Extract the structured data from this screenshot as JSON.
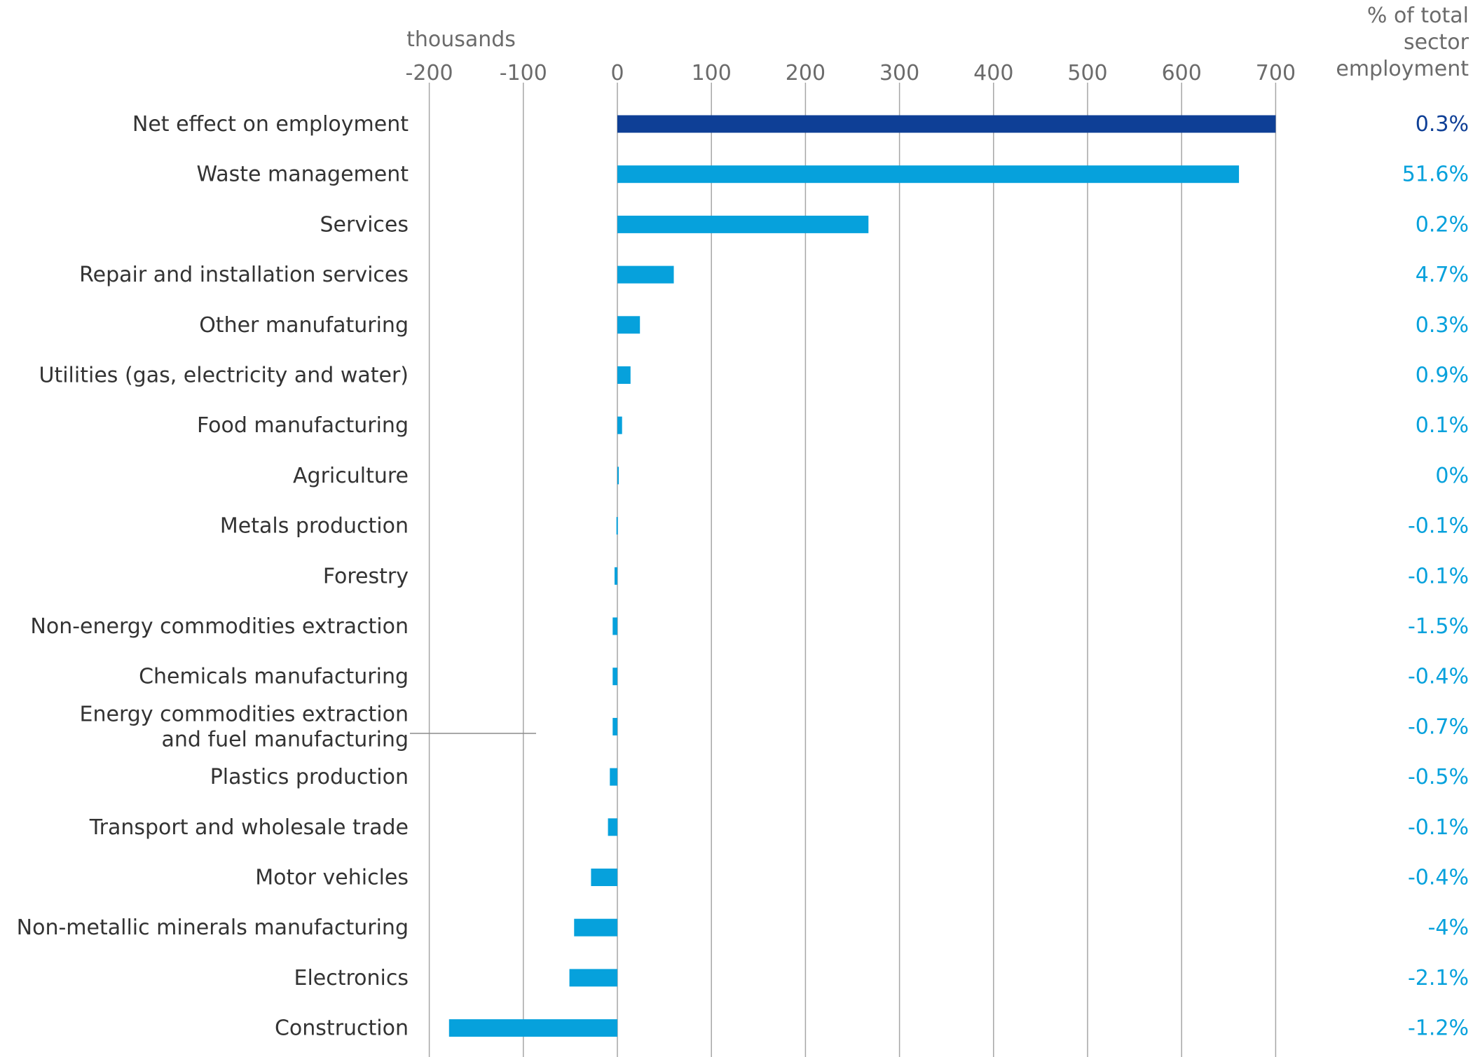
{
  "colors": {
    "net": "#0e3f96",
    "sector": "#06a1dc",
    "grid": "#a6a6a6",
    "tick": "#6b6b6b",
    "label": "#333333"
  },
  "chart_data": {
    "type": "bar",
    "orientation": "horizontal",
    "x_unit_label": "thousands",
    "xlim": [
      -200,
      700
    ],
    "xticks": [
      -200,
      -100,
      0,
      100,
      200,
      300,
      400,
      500,
      600,
      700
    ],
    "right_column_header": [
      "% of total",
      "sector",
      "employment"
    ],
    "grid": true,
    "rows": [
      {
        "label": [
          "Net effect on employment"
        ],
        "value": 700,
        "pct": "0.3%",
        "highlight": true
      },
      {
        "label": [
          "Waste management"
        ],
        "value": 661,
        "pct": "51.6%"
      },
      {
        "label": [
          "Services"
        ],
        "value": 267,
        "pct": "0.2%"
      },
      {
        "label": [
          "Repair and installation services"
        ],
        "value": 60,
        "pct": "4.7%"
      },
      {
        "label": [
          "Other manufaturing"
        ],
        "value": 24,
        "pct": "0.3%"
      },
      {
        "label": [
          "Utilities (gas, electricity and water)"
        ],
        "value": 14,
        "pct": "0.9%"
      },
      {
        "label": [
          "Food manufacturing"
        ],
        "value": 5,
        "pct": "0.1%"
      },
      {
        "label": [
          "Agriculture"
        ],
        "value": 1,
        "pct": "0%"
      },
      {
        "label": [
          "Metals production"
        ],
        "value": -1,
        "pct": "-0.1%"
      },
      {
        "label": [
          "Forestry"
        ],
        "value": -3,
        "pct": "-0.1%"
      },
      {
        "label": [
          "Non-energy commodities extraction"
        ],
        "value": -5,
        "pct": "-1.5%"
      },
      {
        "label": [
          "Chemicals manufacturing"
        ],
        "value": -5,
        "pct": "-0.4%"
      },
      {
        "label": [
          "Energy commodities extraction",
          "and fuel manufacturing"
        ],
        "value": -5,
        "pct": "-0.7%"
      },
      {
        "label": [
          "Plastics production"
        ],
        "value": -8,
        "pct": "-0.5%"
      },
      {
        "label": [
          "Transport and wholesale trade"
        ],
        "value": -10,
        "pct": "-0.1%"
      },
      {
        "label": [
          "Motor vehicles"
        ],
        "value": -28,
        "pct": "-0.4%"
      },
      {
        "label": [
          "Non-metallic minerals manufacturing"
        ],
        "value": -46,
        "pct": "-4%"
      },
      {
        "label": [
          "Electronics"
        ],
        "value": -51,
        "pct": "-2.1%"
      },
      {
        "label": [
          "Construction"
        ],
        "value": -179,
        "pct": "-1.2%"
      }
    ]
  }
}
